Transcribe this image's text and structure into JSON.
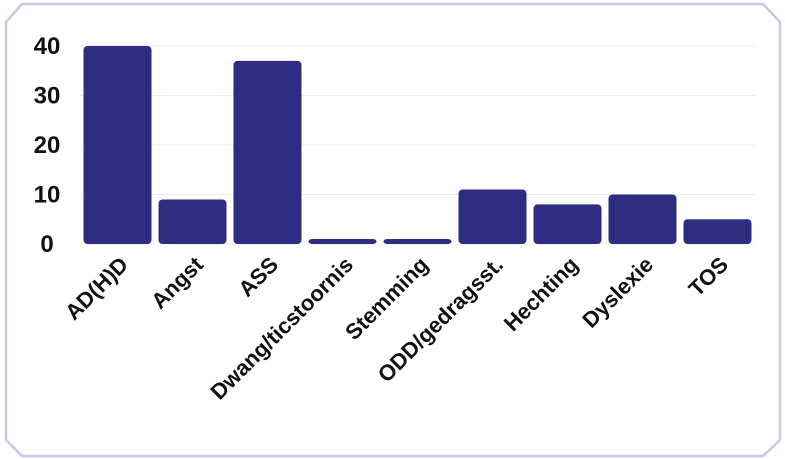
{
  "chart_data": {
    "type": "bar",
    "categories": [
      "AD(H)D",
      "Angst",
      "ASS",
      "Dwang/ticstoornis",
      "Stemming",
      "ODD/gedragsst.",
      "Hechting",
      "Dyslexie",
      "TOS"
    ],
    "values": [
      40,
      9,
      37,
      1,
      1,
      11,
      8,
      10,
      5
    ],
    "ylim": [
      0,
      40
    ],
    "yticks": [
      0,
      10,
      20,
      30,
      40
    ],
    "title": "",
    "xlabel": "",
    "ylabel": "",
    "grid": true,
    "legend": "none"
  },
  "colors": {
    "bar": "#2d2d82",
    "frame": "#c4cbe6",
    "grid": "#eeeeee",
    "text": "#111111"
  }
}
